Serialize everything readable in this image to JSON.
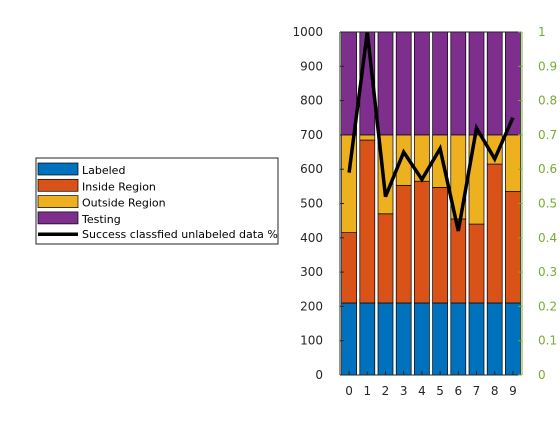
{
  "chart_data": {
    "type": "bar",
    "stacked": true,
    "categories": [
      "0",
      "1",
      "2",
      "3",
      "4",
      "5",
      "6",
      "7",
      "8",
      "9"
    ],
    "series": [
      {
        "name": "Labeled",
        "color": "#0072BD",
        "values": [
          210,
          210,
          210,
          210,
          210,
          210,
          210,
          210,
          210,
          210
        ]
      },
      {
        "name": "Inside Region",
        "color": "#D95319",
        "values": [
          205,
          475,
          260,
          343,
          355,
          337,
          245,
          230,
          405,
          325
        ]
      },
      {
        "name": "Outside Region",
        "color": "#EDB120",
        "values": [
          285,
          15,
          230,
          147,
          135,
          153,
          245,
          260,
          85,
          165
        ]
      },
      {
        "name": "Testing",
        "color": "#7E2F8E",
        "values": [
          300,
          300,
          300,
          300,
          300,
          300,
          300,
          300,
          300,
          300
        ]
      }
    ],
    "line_series": {
      "name": "Success classfied unlabeled data %",
      "color": "#000000",
      "axis": "right",
      "values": [
        0.59,
        1.0,
        0.52,
        0.65,
        0.57,
        0.66,
        0.42,
        0.72,
        0.63,
        0.75
      ]
    },
    "y_left": {
      "lim": [
        0,
        1000
      ],
      "ticks": [
        "0",
        "100",
        "200",
        "300",
        "400",
        "500",
        "600",
        "700",
        "800",
        "900",
        "1000"
      ]
    },
    "y_right": {
      "lim": [
        0,
        1
      ],
      "color": "#77AC30",
      "ticks": [
        "0",
        "0.1",
        "0.2",
        "0.3",
        "0.4",
        "0.5",
        "0.6",
        "0.7",
        "0.8",
        "0.9",
        "1"
      ]
    },
    "legend": {
      "placement": "outside-left",
      "entries": [
        "Labeled",
        "Inside Region",
        "Outside Region",
        "Testing",
        "Success classfied unlabeled data %"
      ]
    }
  }
}
